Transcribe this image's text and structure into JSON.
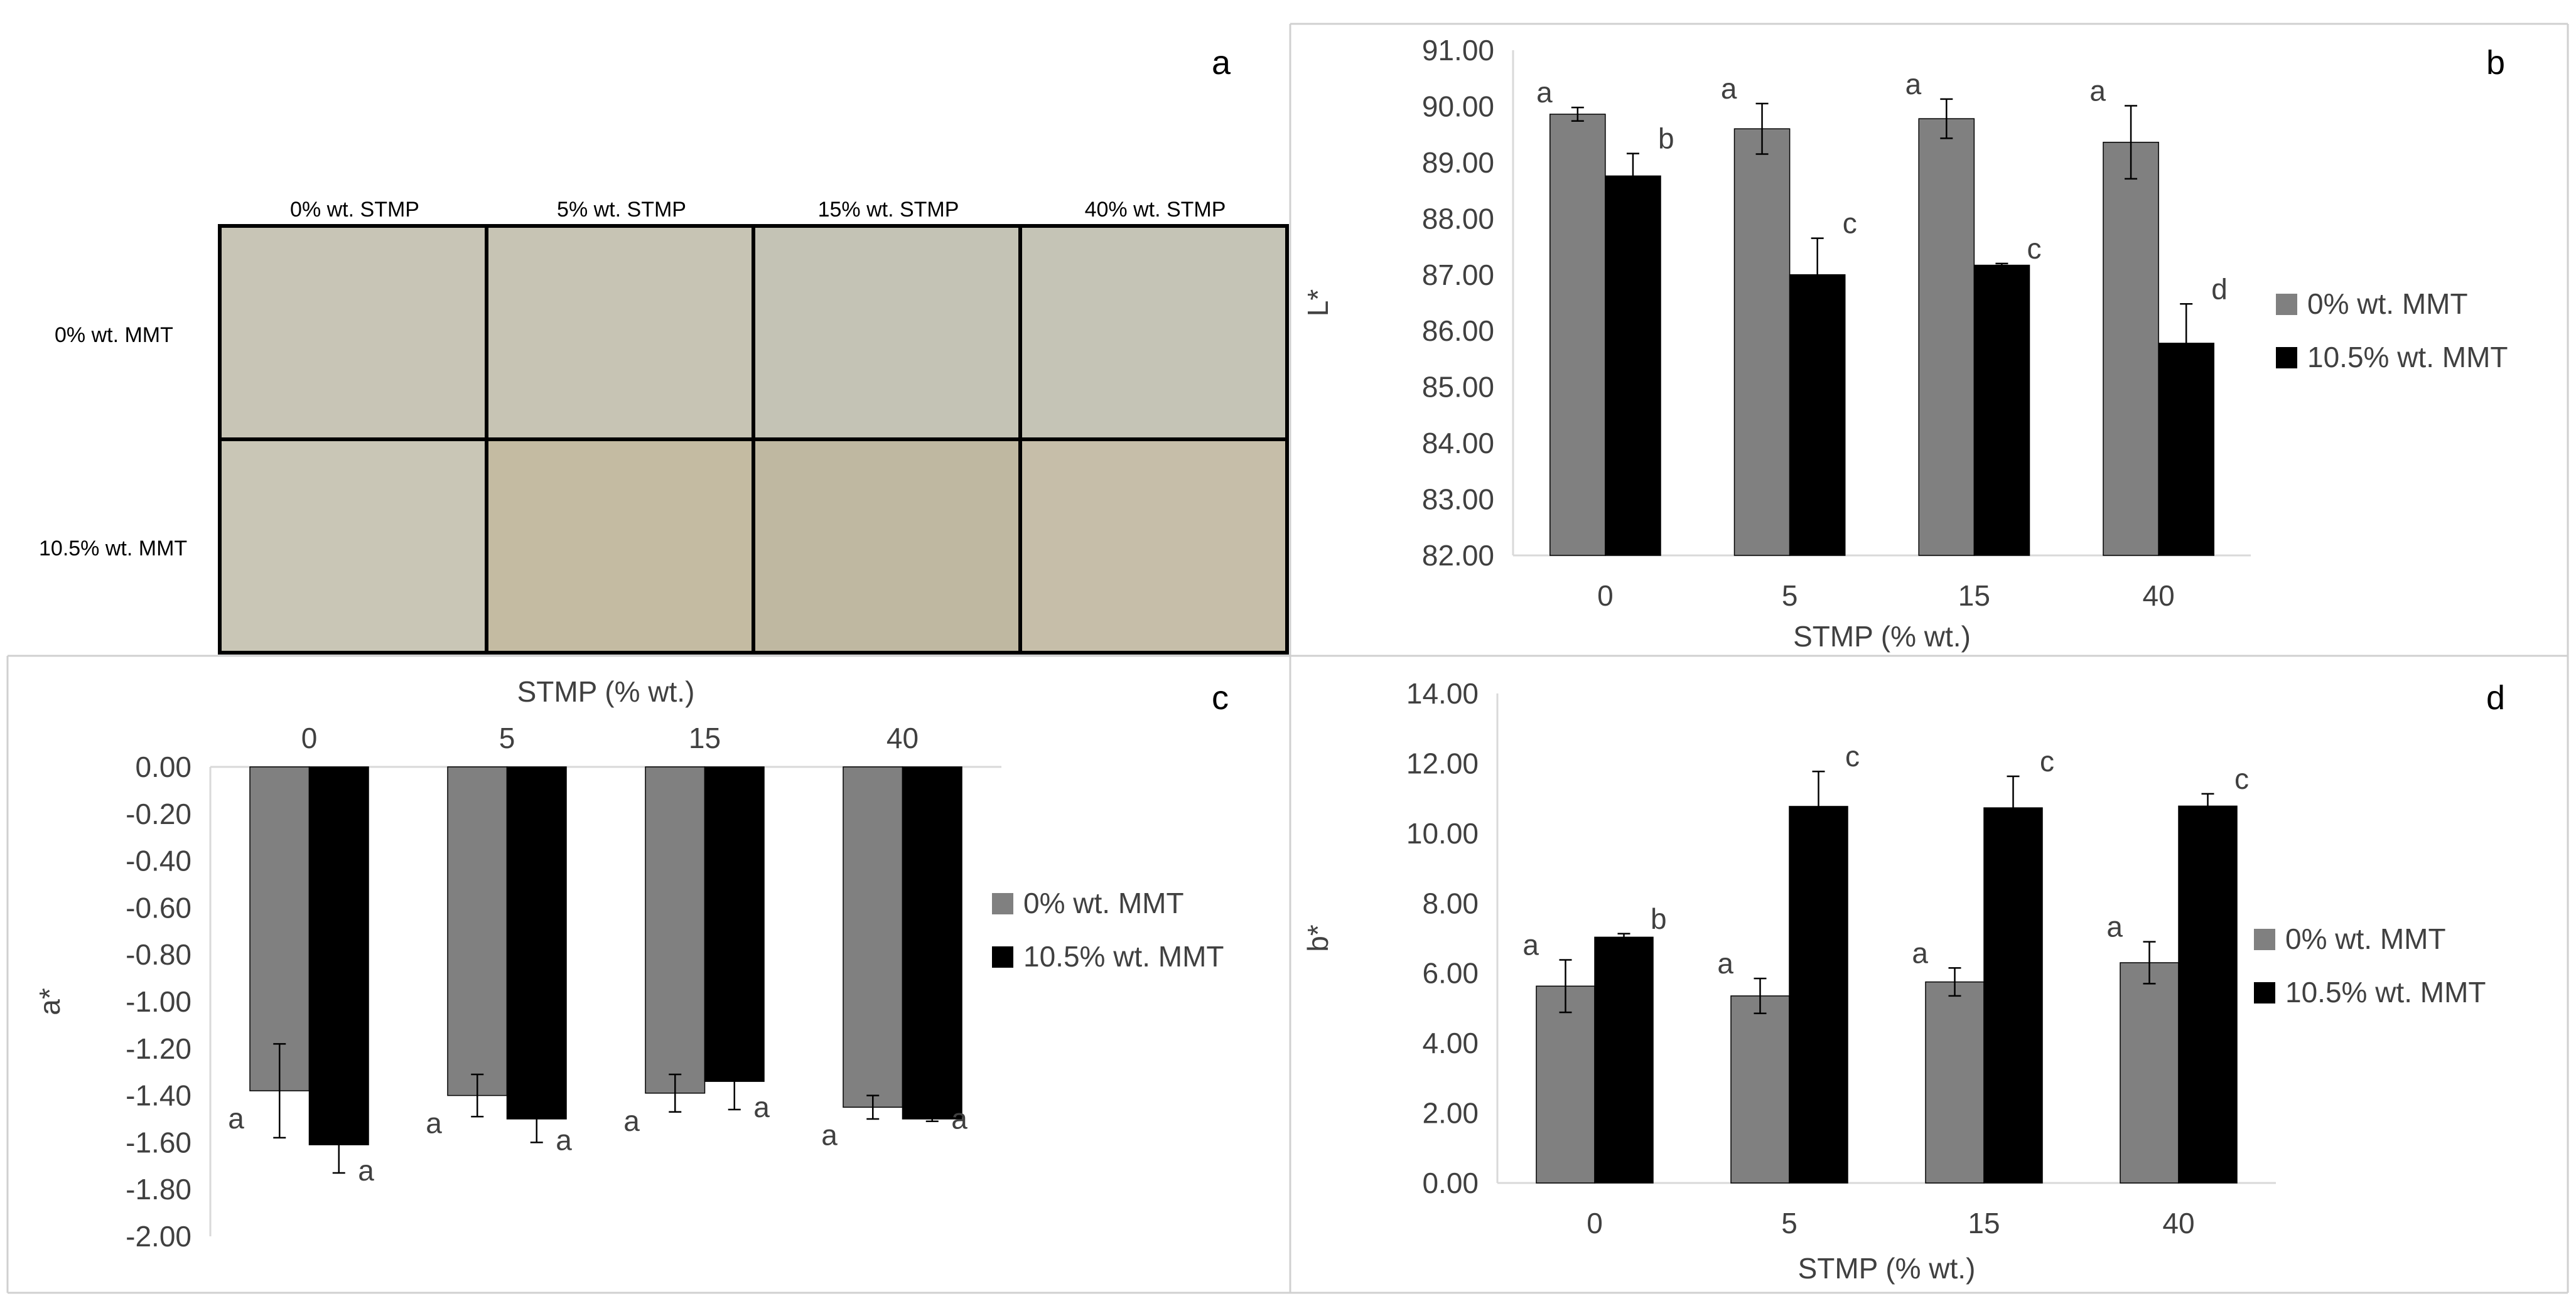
{
  "colors": {
    "series0": "#808080",
    "series1": "#000000",
    "axis": "#d9d9d9",
    "text": "#404040",
    "border": "#d0d0d0"
  },
  "panel_a": {
    "letter": "a",
    "columns": [
      "0% wt. STMP",
      "5% wt. STMP",
      "15% wt. STMP",
      "40% wt. STMP"
    ],
    "rows": [
      "0% wt. MMT",
      "10.5% wt. MMT"
    ],
    "swatch_colors": [
      [
        "#c8c5b6",
        "#c7c4b4",
        "#c4c3b5",
        "#c5c4b6"
      ],
      [
        "#c9c6b6",
        "#c4bba2",
        "#bfb8a1",
        "#c6bea9"
      ]
    ]
  },
  "chart_data": [
    {
      "panel": "b",
      "type": "bar",
      "letter": "b",
      "title": "",
      "xlabel": "STMP (% wt.)",
      "ylabel": "L*",
      "categories": [
        "0",
        "5",
        "15",
        "40"
      ],
      "ylim": [
        82,
        91
      ],
      "yticks": [
        "82.00",
        "83.00",
        "84.00",
        "85.00",
        "86.00",
        "87.00",
        "88.00",
        "89.00",
        "90.00",
        "91.00"
      ],
      "legend_position": "right",
      "x_axis_position": "bottom",
      "series": [
        {
          "name": "0% wt. MMT",
          "values": [
            89.86,
            89.6,
            89.78,
            89.36
          ],
          "errors": [
            0.12,
            0.45,
            0.35,
            0.65
          ],
          "labels": [
            "a",
            "a",
            "a",
            "a"
          ]
        },
        {
          "name": "10.5% wt. MMT",
          "values": [
            88.76,
            87.0,
            87.17,
            85.78
          ],
          "errors": [
            0.4,
            0.65,
            0.03,
            0.7
          ],
          "labels": [
            "b",
            "c",
            "c",
            "d"
          ]
        }
      ]
    },
    {
      "panel": "c",
      "type": "bar",
      "letter": "c",
      "title": "",
      "xlabel": "STMP (% wt.)",
      "ylabel": "a*",
      "categories": [
        "0",
        "5",
        "15",
        "40"
      ],
      "ylim": [
        -2,
        0
      ],
      "yticks": [
        "-2.00",
        "-1.80",
        "-1.60",
        "-1.40",
        "-1.20",
        "-1.00",
        "-0.80",
        "-0.60",
        "-0.40",
        "-0.20",
        "0.00"
      ],
      "legend_position": "right",
      "x_axis_position": "top",
      "series": [
        {
          "name": "0% wt. MMT",
          "values": [
            -1.38,
            -1.4,
            -1.39,
            -1.45
          ],
          "errors": [
            0.2,
            0.09,
            0.08,
            0.05
          ],
          "labels": [
            "a",
            "a",
            "a",
            "a"
          ]
        },
        {
          "name": "10.5% wt. MMT",
          "values": [
            -1.61,
            -1.5,
            -1.34,
            -1.5
          ],
          "errors": [
            0.12,
            0.1,
            0.12,
            0.01
          ],
          "labels": [
            "a",
            "a",
            "a",
            "a"
          ]
        }
      ]
    },
    {
      "panel": "d",
      "type": "bar",
      "letter": "d",
      "title": "",
      "xlabel": "STMP (% wt.)",
      "ylabel": "b*",
      "categories": [
        "0",
        "5",
        "15",
        "40"
      ],
      "ylim": [
        0,
        14
      ],
      "yticks": [
        "0.00",
        "2.00",
        "4.00",
        "6.00",
        "8.00",
        "10.00",
        "12.00",
        "14.00"
      ],
      "legend_position": "right",
      "x_axis_position": "bottom",
      "series": [
        {
          "name": "0% wt. MMT",
          "values": [
            5.63,
            5.35,
            5.75,
            6.3
          ],
          "errors": [
            0.75,
            0.5,
            0.4,
            0.6
          ],
          "labels": [
            "a",
            "a",
            "a",
            "a"
          ]
        },
        {
          "name": "10.5% wt. MMT",
          "values": [
            7.03,
            10.77,
            10.73,
            10.78
          ],
          "errors": [
            0.1,
            1.0,
            0.9,
            0.35
          ],
          "labels": [
            "b",
            "c",
            "c",
            "c"
          ]
        }
      ]
    }
  ]
}
